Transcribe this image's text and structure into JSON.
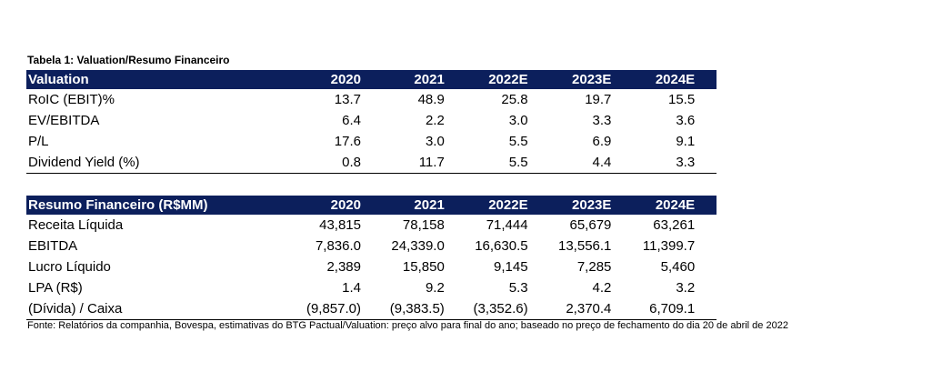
{
  "title": "Tabela 1: Valuation/Resumo Financeiro",
  "valuation": {
    "header": [
      "Valuation",
      "2020",
      "2021",
      "2022E",
      "2023E",
      "2024E"
    ],
    "rows": [
      [
        "RoIC (EBIT)%",
        "13.7",
        "48.9",
        "25.8",
        "19.7",
        "15.5"
      ],
      [
        "EV/EBITDA",
        "6.4",
        "2.2",
        "3.0",
        "3.3",
        "3.6"
      ],
      [
        "P/L",
        "17.6",
        "3.0",
        "5.5",
        "6.9",
        "9.1"
      ],
      [
        "Dividend Yield (%)",
        "0.8",
        "11.7",
        "5.5",
        "4.4",
        "3.3"
      ]
    ]
  },
  "resumo": {
    "header": [
      "Resumo Financeiro (R$MM)",
      "2020",
      "2021",
      "2022E",
      "2023E",
      "2024E"
    ],
    "rows": [
      [
        "Receita Líquida",
        "43,815",
        "78,158",
        "71,444",
        "65,679",
        "63,261"
      ],
      [
        "EBITDA",
        "7,836.0",
        "24,339.0",
        "16,630.5",
        "13,556.1",
        "11,399.7"
      ],
      [
        "Lucro Líquido",
        "2,389",
        "15,850",
        "9,145",
        "7,285",
        "5,460"
      ],
      [
        "LPA (R$)",
        "1.4",
        "9.2",
        "5.3",
        "4.2",
        "3.2"
      ],
      [
        "(Dívida) / Caixa",
        "(9,857.0)",
        "(9,383.5)",
        "(3,352.6)",
        "2,370.4",
        "6,709.1"
      ]
    ]
  },
  "footnote": "Fonte: Relatórios da companhia, Bovespa, estimativas do BTG Pactual/Valuation: preço alvo para final do ano; baseado no preço de fechamento do dia 20 de abril de 2022"
}
